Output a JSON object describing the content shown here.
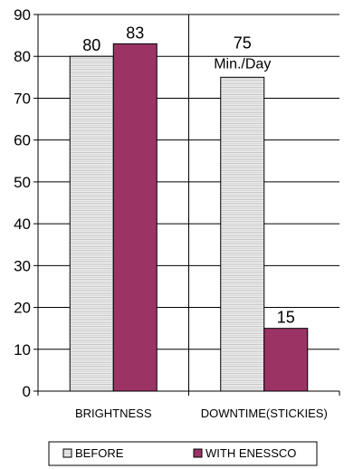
{
  "chart_data": {
    "type": "bar",
    "categories": [
      "BRIGHTNESS",
      "DOWNTIME(STICKIES)"
    ],
    "series": [
      {
        "name": "BEFORE",
        "values": [
          80,
          75
        ],
        "color": "#e3e3e3",
        "pattern": "light-gray-horizontal-lines"
      },
      {
        "name": "WITH ENESSCO",
        "values": [
          83,
          15
        ],
        "color": "#9b3465"
      }
    ],
    "data_labels": [
      [
        "80",
        "75"
      ],
      [
        "83",
        "15"
      ]
    ],
    "annotations": [
      {
        "text": "Min./Day",
        "category": "DOWNTIME(STICKIES)",
        "series": "BEFORE",
        "value": 75
      }
    ],
    "ylim": [
      0,
      90
    ],
    "yticks": [
      0,
      10,
      20,
      30,
      40,
      50,
      60,
      70,
      80,
      90
    ],
    "grid": "horizontal",
    "legend_position": "bottom"
  }
}
